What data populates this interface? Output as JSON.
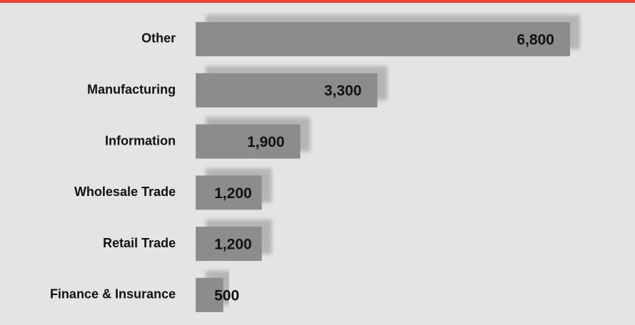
{
  "chart_data": {
    "type": "hbar",
    "categories": [
      "Other",
      "Manufacturing",
      "Information",
      "Wholesale Trade",
      "Retail Trade",
      "Finance & Insurance"
    ],
    "values": [
      6800,
      3300,
      1900,
      1200,
      1200,
      500
    ],
    "value_labels": [
      "6,800",
      "3,300",
      "1,900",
      "1,200",
      "1,200",
      "500"
    ],
    "color": "#8c8c8c"
  }
}
